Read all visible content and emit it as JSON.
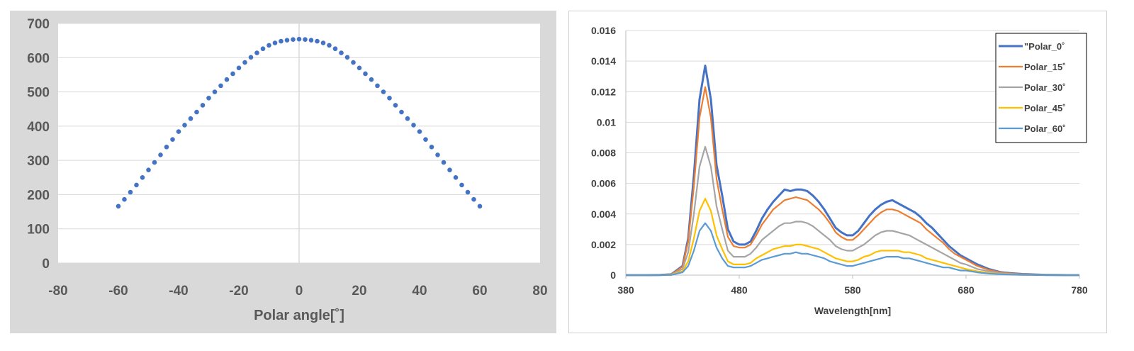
{
  "chart_data": [
    {
      "type": "scatter",
      "title": "",
      "xlabel": "Polar angle[˚]",
      "ylabel": "",
      "xlim": [
        -80,
        80
      ],
      "ylim": [
        0,
        700
      ],
      "xticks": [
        -80,
        -60,
        -40,
        -20,
        0,
        20,
        40,
        60,
        80
      ],
      "yticks": [
        0,
        100,
        200,
        300,
        400,
        500,
        600,
        700
      ],
      "grid": "horizontal",
      "legend": "none",
      "series": [
        {
          "color": "#4472c4",
          "x": [
            -60,
            -58,
            -56,
            -54,
            -52,
            -50,
            -48,
            -46,
            -44,
            -42,
            -40,
            -38,
            -36,
            -34,
            -32,
            -30,
            -28,
            -26,
            -24,
            -22,
            -20,
            -18,
            -16,
            -14,
            -12,
            -10,
            -8,
            -6,
            -4,
            -2,
            0,
            2,
            4,
            6,
            8,
            10,
            12,
            14,
            16,
            18,
            20,
            22,
            24,
            26,
            28,
            30,
            32,
            34,
            36,
            38,
            40,
            42,
            44,
            46,
            48,
            50,
            52,
            54,
            56,
            58,
            60
          ],
          "y": [
            166,
            186,
            207,
            228,
            250,
            272,
            294,
            316,
            339,
            361,
            384,
            403,
            422,
            441,
            461,
            482,
            500,
            518,
            536,
            553,
            570,
            586,
            601,
            614,
            626,
            636,
            643,
            648,
            651,
            653,
            654,
            653,
            651,
            648,
            643,
            636,
            626,
            614,
            601,
            586,
            570,
            553,
            536,
            518,
            500,
            482,
            461,
            441,
            422,
            403,
            384,
            361,
            339,
            316,
            294,
            272,
            250,
            228,
            207,
            186,
            166
          ]
        }
      ]
    },
    {
      "type": "line",
      "title": "",
      "xlabel": "Wavelength[nm]",
      "ylabel": "",
      "xlim": [
        380,
        780
      ],
      "ylim": [
        0,
        0.016
      ],
      "xticks": [
        "380",
        "480",
        "580",
        "680",
        "780"
      ],
      "yticks": [
        "0",
        "0.002",
        "0.004",
        "0.006",
        "0.008",
        "0.01",
        "0.012",
        "0.014",
        "0.016"
      ],
      "grid": "horizontal",
      "legend": "top-right",
      "x": [
        380,
        390,
        400,
        410,
        420,
        430,
        435,
        440,
        445,
        450,
        455,
        460,
        465,
        470,
        475,
        480,
        485,
        490,
        495,
        500,
        505,
        510,
        515,
        520,
        525,
        530,
        535,
        540,
        545,
        550,
        555,
        560,
        565,
        570,
        575,
        580,
        585,
        590,
        595,
        600,
        605,
        610,
        615,
        620,
        625,
        630,
        635,
        640,
        645,
        650,
        655,
        660,
        665,
        670,
        675,
        680,
        690,
        700,
        710,
        720,
        730,
        740,
        750,
        760,
        770,
        780
      ],
      "series": [
        {
          "name": "\"Polar_0˚",
          "color": "#4472c4",
          "width": 3,
          "values": [
            0,
            0,
            0,
            1e-05,
            5e-05,
            0.0006,
            0.0024,
            0.0065,
            0.0115,
            0.0137,
            0.0115,
            0.0072,
            0.0052,
            0.003,
            0.0022,
            0.002,
            0.002,
            0.0022,
            0.0029,
            0.0037,
            0.0043,
            0.0048,
            0.0052,
            0.0056,
            0.0055,
            0.0056,
            0.0056,
            0.0055,
            0.0052,
            0.0048,
            0.0043,
            0.0037,
            0.0031,
            0.0028,
            0.0026,
            0.0026,
            0.0029,
            0.0034,
            0.0039,
            0.0043,
            0.0046,
            0.0048,
            0.0049,
            0.0047,
            0.0045,
            0.0043,
            0.0041,
            0.0038,
            0.0034,
            0.0031,
            0.0027,
            0.0023,
            0.0019,
            0.0016,
            0.0013,
            0.0011,
            0.0007,
            0.0004,
            0.0002,
            0.00012,
            7e-05,
            4e-05,
            2e-05,
            1e-05,
            0,
            0
          ]
        },
        {
          "name": "Polar_15˚",
          "color": "#ed7d31",
          "width": 2.2,
          "values": [
            0,
            0,
            0,
            1e-05,
            4e-05,
            0.00055,
            0.0022,
            0.0058,
            0.0103,
            0.0123,
            0.0103,
            0.0063,
            0.0043,
            0.0025,
            0.0019,
            0.0018,
            0.0018,
            0.002,
            0.0026,
            0.0033,
            0.0038,
            0.0043,
            0.0046,
            0.0049,
            0.005,
            0.0051,
            0.005,
            0.0049,
            0.0046,
            0.0043,
            0.0039,
            0.0034,
            0.0028,
            0.0025,
            0.0023,
            0.0023,
            0.0026,
            0.003,
            0.0034,
            0.0038,
            0.0041,
            0.0043,
            0.0043,
            0.0042,
            0.004,
            0.0038,
            0.0036,
            0.0034,
            0.003,
            0.0027,
            0.0024,
            0.0021,
            0.0017,
            0.0014,
            0.0012,
            0.001,
            0.0006,
            0.00035,
            0.00018,
            0.0001,
            6e-05,
            3e-05,
            2e-05,
            1e-05,
            0,
            0
          ]
        },
        {
          "name": "Polar_30˚",
          "color": "#a5a5a5",
          "width": 2.2,
          "values": [
            0,
            0,
            0,
            1e-05,
            3e-05,
            0.0004,
            0.0015,
            0.004,
            0.0071,
            0.0084,
            0.0071,
            0.0045,
            0.003,
            0.0016,
            0.0012,
            0.0012,
            0.0012,
            0.0014,
            0.0018,
            0.0023,
            0.0026,
            0.0029,
            0.0032,
            0.0034,
            0.0034,
            0.0035,
            0.0035,
            0.0034,
            0.0032,
            0.0029,
            0.0026,
            0.0023,
            0.0019,
            0.0017,
            0.0016,
            0.0016,
            0.0018,
            0.002,
            0.0023,
            0.0026,
            0.0028,
            0.0029,
            0.0029,
            0.0028,
            0.0027,
            0.0026,
            0.0024,
            0.0022,
            0.002,
            0.0018,
            0.0016,
            0.0014,
            0.0012,
            0.001,
            0.0008,
            0.0007,
            0.0004,
            0.00025,
            0.00013,
            7e-05,
            4e-05,
            2e-05,
            1e-05,
            1e-05,
            0,
            0
          ]
        },
        {
          "name": "Polar_45˚",
          "color": "#ffc000",
          "width": 2.2,
          "values": [
            0,
            0,
            0,
            0,
            2e-05,
            0.00025,
            0.0009,
            0.0024,
            0.0042,
            0.005,
            0.0042,
            0.0026,
            0.0017,
            0.0009,
            0.0007,
            0.0007,
            0.0007,
            0.0008,
            0.0011,
            0.0013,
            0.0015,
            0.0017,
            0.0018,
            0.0019,
            0.0019,
            0.002,
            0.002,
            0.0019,
            0.0018,
            0.0017,
            0.0015,
            0.0013,
            0.0011,
            0.001,
            0.0009,
            0.0009,
            0.001,
            0.0012,
            0.0013,
            0.0015,
            0.0016,
            0.0016,
            0.0016,
            0.0016,
            0.0015,
            0.0015,
            0.0014,
            0.0013,
            0.0011,
            0.001,
            0.0009,
            0.0008,
            0.0007,
            0.0006,
            0.0005,
            0.0004,
            0.00025,
            0.00015,
            8e-05,
            4e-05,
            2e-05,
            1e-05,
            1e-05,
            0,
            0,
            0
          ]
        },
        {
          "name": "Polar_60˚",
          "color": "#5b9bd5",
          "width": 2.2,
          "values": [
            0,
            0,
            0,
            0,
            1e-05,
            0.00018,
            0.0006,
            0.0016,
            0.0029,
            0.0034,
            0.0029,
            0.0018,
            0.0011,
            0.0006,
            0.0005,
            0.0005,
            0.0005,
            0.0006,
            0.0008,
            0.001,
            0.0011,
            0.0012,
            0.0013,
            0.0014,
            0.0014,
            0.0015,
            0.0014,
            0.0014,
            0.0013,
            0.0012,
            0.0011,
            0.0009,
            0.0008,
            0.0007,
            0.0006,
            0.0006,
            0.0007,
            0.0008,
            0.0009,
            0.001,
            0.0011,
            0.0012,
            0.0012,
            0.0012,
            0.0011,
            0.0011,
            0.001,
            0.0009,
            0.0008,
            0.0007,
            0.0006,
            0.0005,
            0.0005,
            0.0004,
            0.0003,
            0.0003,
            0.00018,
            0.0001,
            6e-05,
            3e-05,
            2e-05,
            1e-05,
            0,
            0,
            0,
            0
          ]
        }
      ]
    }
  ]
}
